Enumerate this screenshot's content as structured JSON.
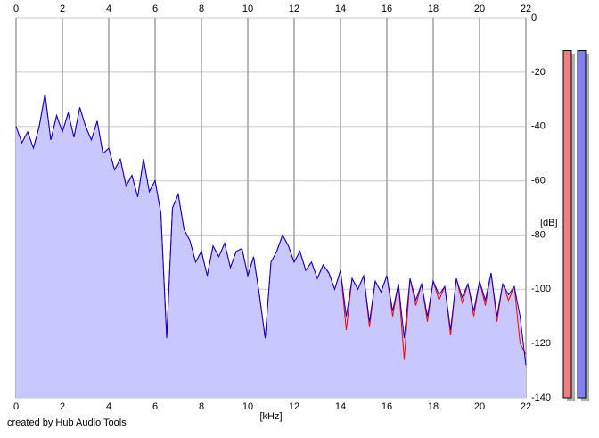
{
  "chart_data": {
    "type": "spectrum",
    "x_label": "[kHz]",
    "y_label": "[dB]",
    "footer": "created by Hub Audio Tools",
    "x": [
      0,
      0.25,
      0.5,
      0.75,
      1,
      1.25,
      1.5,
      1.75,
      2,
      2.25,
      2.5,
      2.75,
      3,
      3.25,
      3.5,
      3.75,
      4,
      4.25,
      4.5,
      4.75,
      5,
      5.25,
      5.5,
      5.75,
      6,
      6.25,
      6.5,
      6.75,
      7,
      7.25,
      7.5,
      7.75,
      8,
      8.25,
      8.5,
      8.75,
      9,
      9.25,
      9.5,
      9.75,
      10,
      10.25,
      10.5,
      10.75,
      11,
      11.25,
      11.5,
      11.75,
      12,
      12.25,
      12.5,
      12.75,
      13,
      13.25,
      13.5,
      13.75,
      14,
      14.25,
      14.5,
      14.75,
      15,
      15.25,
      15.5,
      15.75,
      16,
      16.25,
      16.5,
      16.75,
      17,
      17.25,
      17.5,
      17.75,
      18,
      18.25,
      18.5,
      18.75,
      19,
      19.25,
      19.5,
      19.75,
      20,
      20.25,
      20.5,
      20.75,
      21,
      21.25,
      21.5,
      21.75,
      22
    ],
    "series": [
      {
        "color": "#ff0000",
        "values": [
          -40,
          -46,
          -42,
          -48,
          -40,
          -28,
          -45,
          -36,
          -42,
          -35,
          -44,
          -33,
          -40,
          -45,
          -38,
          -50,
          -48,
          -56,
          -52,
          -62,
          -58,
          -66,
          -52,
          -64,
          -60,
          -72,
          -118,
          -70,
          -65,
          -78,
          -82,
          -90,
          -86,
          -95,
          -84,
          -88,
          -83,
          -92,
          -86,
          -85,
          -95,
          -88,
          -102,
          -118,
          -90,
          -86,
          -80,
          -84,
          -90,
          -86,
          -93,
          -90,
          -96,
          -91,
          -94,
          -100,
          -93,
          -115,
          -96,
          -100,
          -95,
          -114,
          -97,
          -101,
          -95,
          -110,
          -98,
          -126,
          -96,
          -106,
          -98,
          -112,
          -97,
          -104,
          -99,
          -117,
          -96,
          -105,
          -98,
          -110,
          -97,
          -106,
          -94,
          -112,
          -98,
          -104,
          -99,
          -120,
          -124
        ]
      },
      {
        "color": "#0000cc",
        "fill": "#c8c8ff",
        "values": [
          -40,
          -46,
          -42,
          -48,
          -40,
          -28,
          -45,
          -36,
          -42,
          -35,
          -44,
          -33,
          -40,
          -45,
          -38,
          -50,
          -48,
          -56,
          -52,
          -62,
          -58,
          -66,
          -52,
          -64,
          -60,
          -72,
          -118,
          -70,
          -65,
          -78,
          -82,
          -90,
          -86,
          -95,
          -84,
          -88,
          -83,
          -92,
          -86,
          -85,
          -95,
          -88,
          -102,
          -118,
          -90,
          -86,
          -80,
          -84,
          -90,
          -86,
          -93,
          -90,
          -96,
          -91,
          -94,
          -100,
          -93,
          -110,
          -96,
          -100,
          -95,
          -112,
          -97,
          -101,
          -95,
          -108,
          -98,
          -118,
          -96,
          -104,
          -98,
          -110,
          -97,
          -102,
          -99,
          -115,
          -96,
          -103,
          -98,
          -108,
          -97,
          -104,
          -94,
          -110,
          -98,
          -102,
          -99,
          -110,
          -128
        ]
      }
    ],
    "xlim": [
      0,
      22
    ],
    "xticks": [
      0,
      2,
      4,
      6,
      8,
      10,
      12,
      14,
      16,
      18,
      20,
      22
    ],
    "ylim": [
      -140,
      0
    ],
    "yticks": [
      0,
      -20,
      -40,
      -60,
      -80,
      -100,
      -120,
      -140
    ],
    "grid": true,
    "levels": {
      "values": [
        -12,
        -12
      ],
      "colors": [
        "#f08080",
        "#8080f0"
      ]
    }
  }
}
